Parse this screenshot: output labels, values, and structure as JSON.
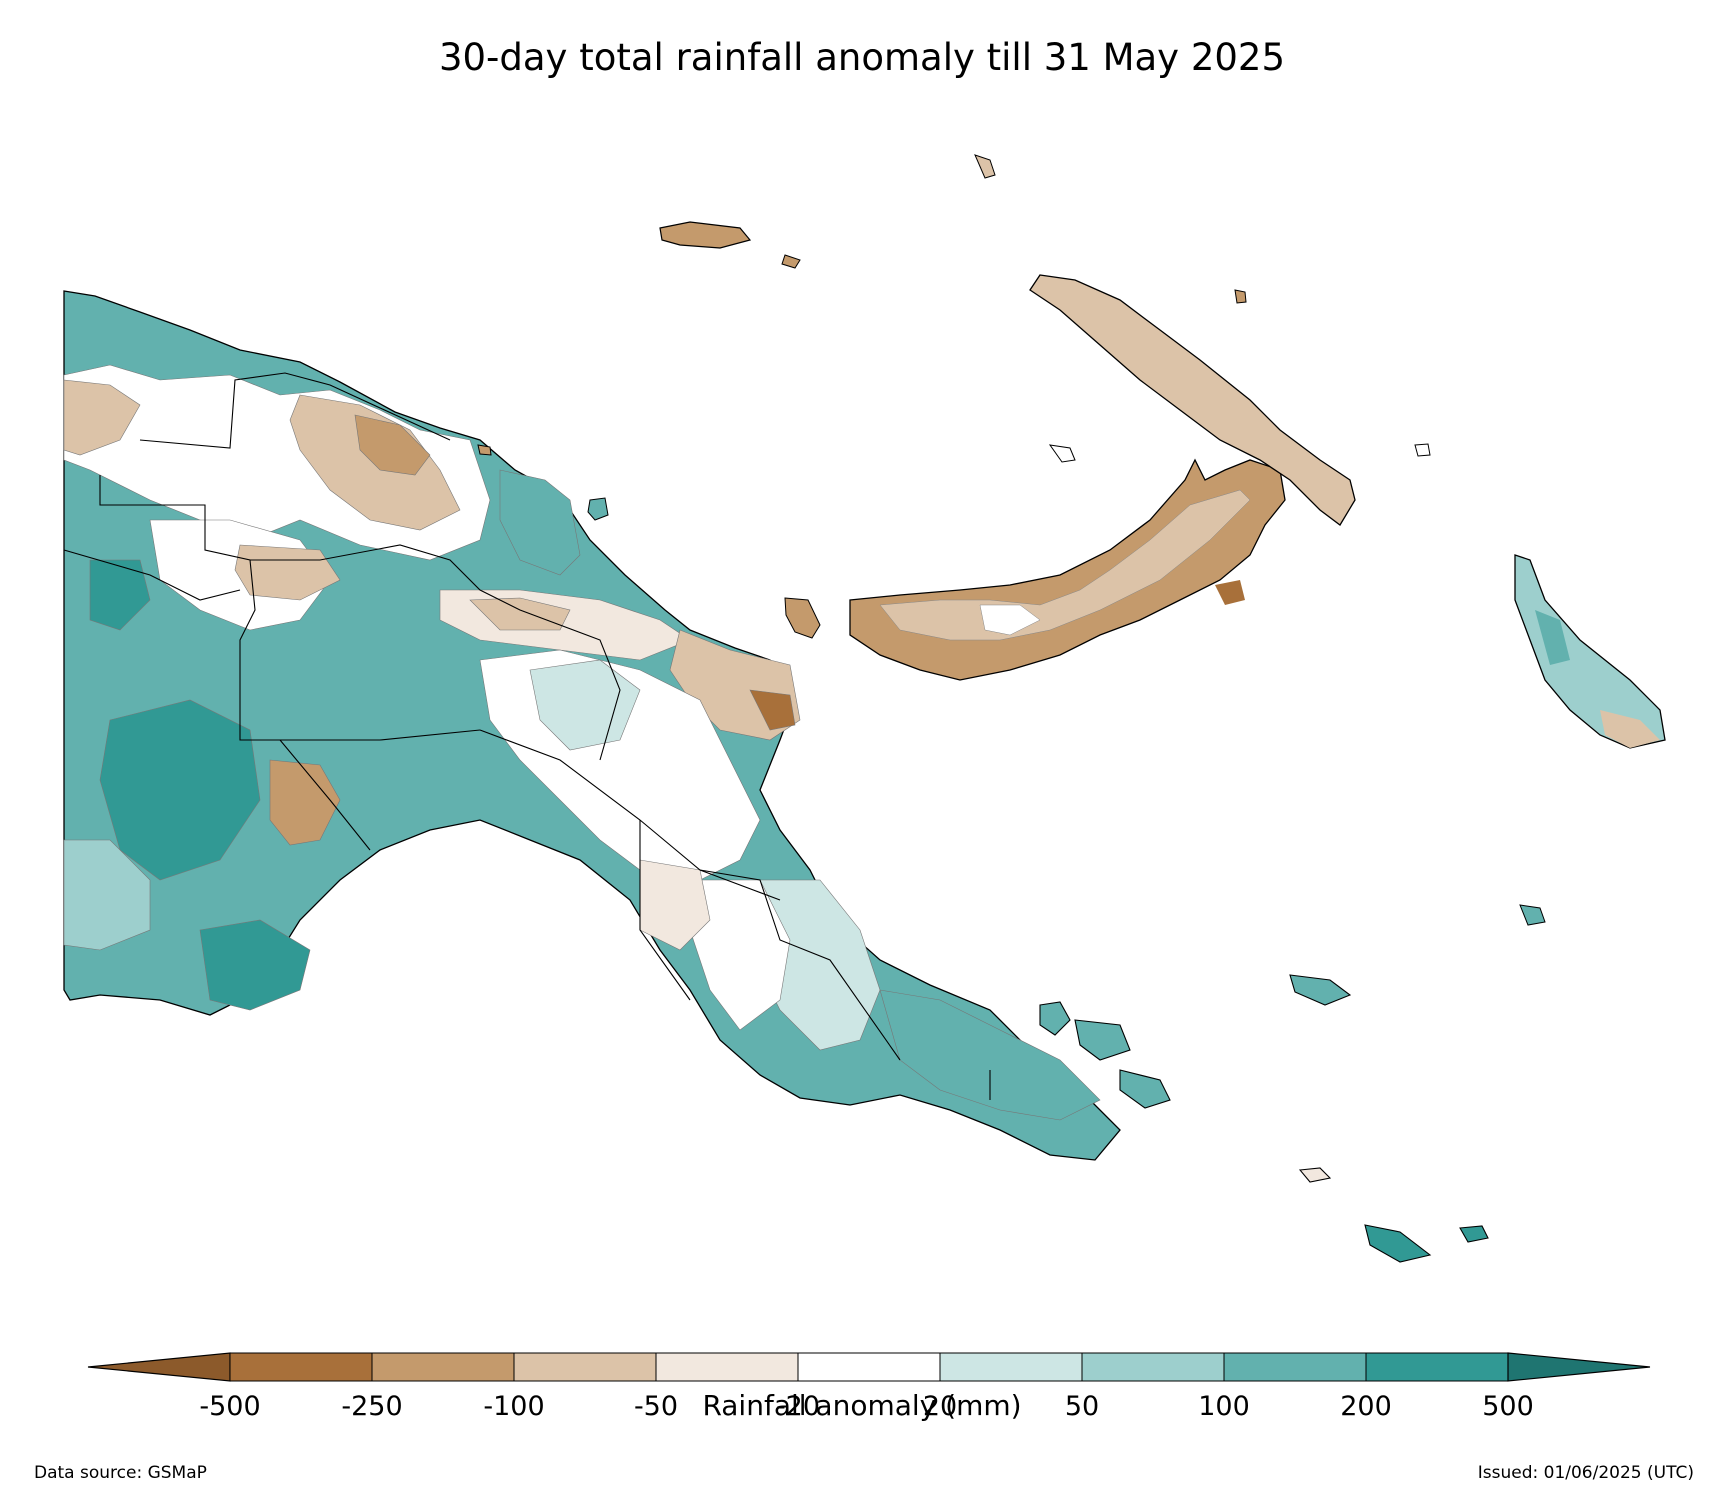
{
  "title": "30-day total rainfall anomaly till 31 May 2025",
  "colorbar": {
    "label": "Rainfall anomaly (mm)",
    "ticks": [
      "-500",
      "-250",
      "-100",
      "-50",
      "-20",
      "20",
      "50",
      "100",
      "200",
      "500"
    ],
    "bins": [
      {
        "from": null,
        "to": -500,
        "color": "#8c5a2b"
      },
      {
        "from": -500,
        "to": -250,
        "color": "#a8703a"
      },
      {
        "from": -250,
        "to": -100,
        "color": "#c49a6c"
      },
      {
        "from": -100,
        "to": -50,
        "color": "#dcc3a8"
      },
      {
        "from": -50,
        "to": -20,
        "color": "#f2e8df"
      },
      {
        "from": -20,
        "to": 20,
        "color": "#ffffff"
      },
      {
        "from": 20,
        "to": 50,
        "color": "#cde6e4"
      },
      {
        "from": 50,
        "to": 100,
        "color": "#9dcfcd"
      },
      {
        "from": 100,
        "to": 200,
        "color": "#62b1ae"
      },
      {
        "from": 200,
        "to": 500,
        "color": "#319994"
      },
      {
        "from": 500,
        "to": null,
        "color": "#1f7571"
      }
    ]
  },
  "footer": {
    "source": "Data source: GSMaP",
    "issued": "Issued: 01/06/2025 (UTC)"
  }
}
